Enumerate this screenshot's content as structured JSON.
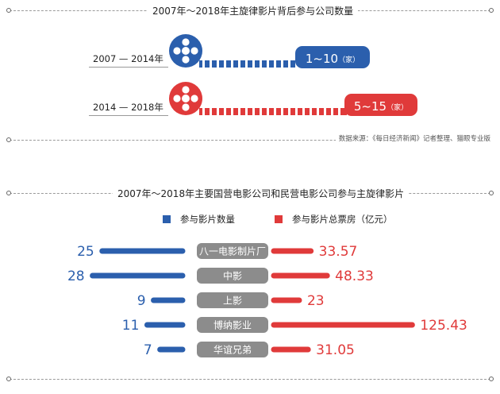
{
  "colors": {
    "blue": "#2b5fad",
    "red": "#e03a3a",
    "label_bg": "#8c8c8c"
  },
  "section1": {
    "title": "2007年～2018年主旋律影片背后参与公司数量",
    "rows": [
      {
        "period": "2007 — 2014年",
        "count": "1~10",
        "unit": "（家）",
        "color": "blue",
        "icon": "film-reel-icon"
      },
      {
        "period": "2014 — 2018年",
        "count": "5~15",
        "unit": "（家）",
        "color": "red",
        "icon": "film-reel-icon"
      }
    ],
    "source": "数据来源：《每日经济新闻》记者整理、猫眼专业版"
  },
  "section2": {
    "title": "2007年～2018年主要国营电影公司和民营电影公司参与主旋律影片",
    "legend": [
      {
        "label": "参与影片数量",
        "color": "blue"
      },
      {
        "label": "参与影片总票房（亿元）",
        "color": "red"
      }
    ]
  },
  "chart_data": {
    "type": "bar",
    "title": "2007年～2018年主要国营电影公司和民营电影公司参与主旋律影片",
    "categories": [
      "八一电影制片厂",
      "中影",
      "上影",
      "博纳影业",
      "华谊兄弟"
    ],
    "series": [
      {
        "name": "参与影片数量",
        "values": [
          25,
          28,
          9,
          11,
          7
        ],
        "labels": [
          "25",
          "28",
          "9",
          "11",
          "7"
        ],
        "color": "#2b5fad"
      },
      {
        "name": "参与影片总票房（亿元）",
        "values": [
          33.57,
          48.33,
          23,
          125.43,
          31.05
        ],
        "labels": [
          "33.57",
          "48.33",
          "23",
          "125.43",
          "31.05"
        ],
        "color": "#e03a3a"
      }
    ],
    "layout": "back-to-back horizontal bars",
    "grid": false,
    "legend_position": "top-center"
  }
}
